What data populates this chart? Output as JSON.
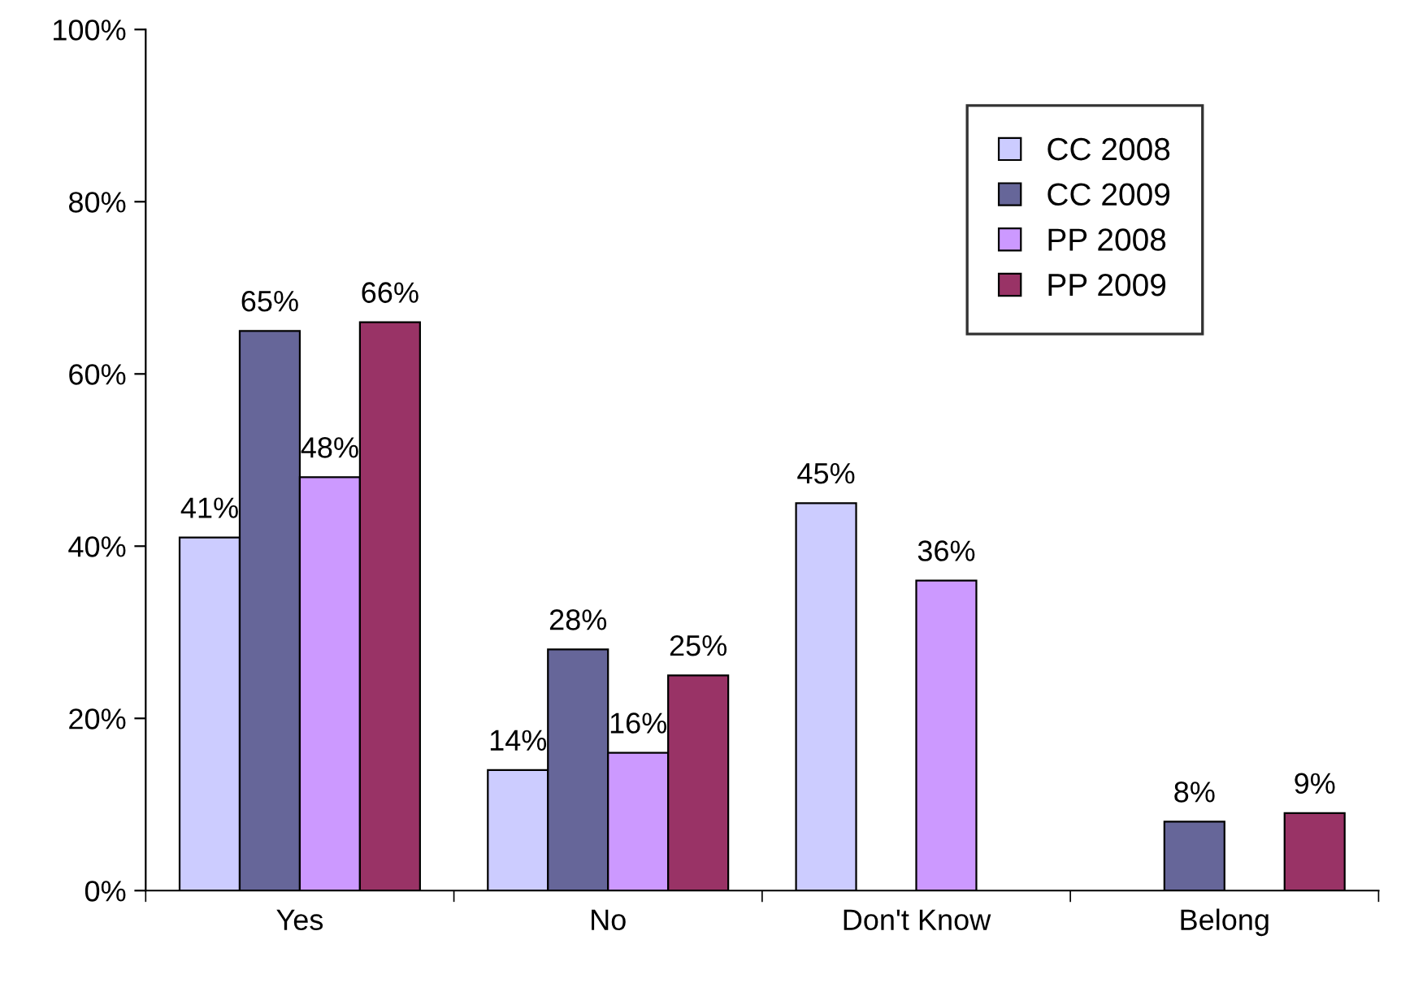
{
  "chart_data": {
    "type": "bar",
    "categories": [
      "Yes",
      "No",
      "Don't Know",
      "Belong"
    ],
    "series": [
      {
        "name": "CC 2008",
        "color": "#ccccff",
        "values": [
          41,
          14,
          45,
          null
        ],
        "value_labels": [
          "41%",
          "14%",
          "45%",
          null
        ]
      },
      {
        "name": "CC 2009",
        "color": "#666699",
        "values": [
          65,
          28,
          null,
          8
        ],
        "value_labels": [
          "65%",
          "28%",
          null,
          "8%"
        ]
      },
      {
        "name": "PP 2008",
        "color": "#cc99ff",
        "values": [
          48,
          16,
          36,
          null
        ],
        "value_labels": [
          "48%",
          "16%",
          "36%",
          null
        ]
      },
      {
        "name": "PP 2009",
        "color": "#993366",
        "values": [
          66,
          25,
          null,
          9
        ],
        "value_labels": [
          "66%",
          "25%",
          null,
          "9%"
        ]
      }
    ],
    "ylim": [
      0,
      100
    ],
    "yticks": [
      {
        "value": 0,
        "label": "0%"
      },
      {
        "value": 20,
        "label": "20%"
      },
      {
        "value": 40,
        "label": "40%"
      },
      {
        "value": 60,
        "label": "60%"
      },
      {
        "value": 80,
        "label": "80%"
      },
      {
        "value": 100,
        "label": "100%"
      }
    ],
    "grid": false,
    "legend": "top right"
  }
}
